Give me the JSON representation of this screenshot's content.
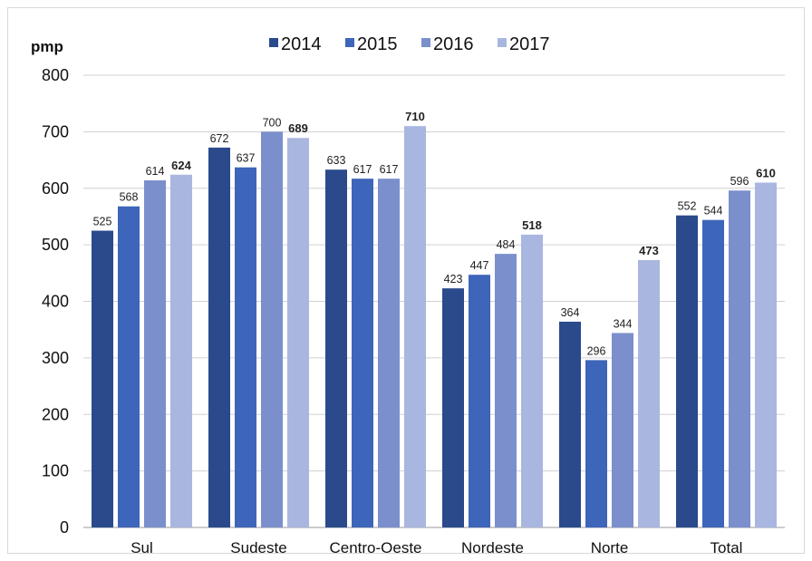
{
  "chart_data": {
    "type": "bar",
    "ylabel": "pmp",
    "xlabel": "",
    "title": "",
    "ylim": [
      0,
      800
    ],
    "yticks": [
      0,
      100,
      200,
      300,
      400,
      500,
      600,
      700,
      800
    ],
    "grid": "horizontal",
    "legend_position": "top-center",
    "categories": [
      "Sul",
      "Sudeste",
      "Centro-Oeste",
      "Nordeste",
      "Norte",
      "Total"
    ],
    "series": [
      {
        "name": "2014",
        "color": "#2a4a8c",
        "values": [
          525,
          672,
          633,
          423,
          364,
          552
        ]
      },
      {
        "name": "2015",
        "color": "#3d65b9",
        "values": [
          568,
          637,
          617,
          447,
          296,
          544
        ]
      },
      {
        "name": "2016",
        "color": "#7a8fcc",
        "values": [
          614,
          700,
          617,
          484,
          344,
          596
        ]
      },
      {
        "name": "2017",
        "color": "#a9b6df",
        "values": [
          624,
          689,
          710,
          518,
          473,
          610
        ],
        "labels_bold": true
      }
    ]
  }
}
